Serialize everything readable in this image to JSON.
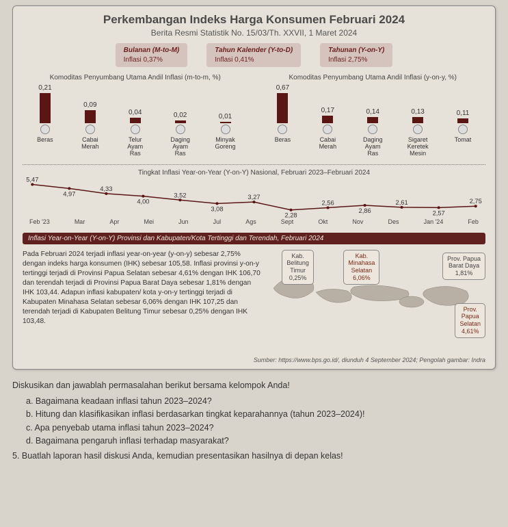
{
  "header": {
    "title": "Perkembangan Indeks Harga Konsumen Februari 2024",
    "subtitle": "Berita Resmi Statistik No. 15/03/Th. XXVII, 1 Maret 2024"
  },
  "pills": [
    {
      "h": "Bulanan (M-to-M)",
      "v": "Inflasi 0,37%"
    },
    {
      "h": "Tahun Kalender (Y-to-D)",
      "v": "Inflasi 0,41%"
    },
    {
      "h": "Tahunan (Y-on-Y)",
      "v": "Inflasi 2,75%"
    }
  ],
  "colors": {
    "bar": "#5a1515",
    "card_bg": "#e6e2da",
    "banner_bg": "#602020",
    "banner_fg": "#f0e8e0"
  },
  "left_bars": {
    "title": "Komoditas Penyumbang Utama Andil Inflasi (m-to-m, %)",
    "items": [
      {
        "label": "Beras",
        "value": 0.21,
        "txt": "0,21"
      },
      {
        "label": "Cabai Merah",
        "value": 0.09,
        "txt": "0,09"
      },
      {
        "label": "Telur Ayam Ras",
        "value": 0.04,
        "txt": "0,04"
      },
      {
        "label": "Daging Ayam Ras",
        "value": 0.02,
        "txt": "0,02"
      },
      {
        "label": "Minyak Goreng",
        "value": 0.01,
        "txt": "0,01"
      }
    ],
    "max": 0.21
  },
  "right_bars": {
    "title": "Komoditas Penyumbang Utama Andil Inflasi (y-on-y, %)",
    "items": [
      {
        "label": "Beras",
        "value": 0.67,
        "txt": "0,67"
      },
      {
        "label": "Cabai Merah",
        "value": 0.17,
        "txt": "0,17"
      },
      {
        "label": "Daging Ayam Ras",
        "value": 0.14,
        "txt": "0,14"
      },
      {
        "label": "Sigaret Keretek Mesin",
        "value": 0.13,
        "txt": "0,13"
      },
      {
        "label": "Tomat",
        "value": 0.11,
        "txt": "0,11"
      }
    ],
    "max": 0.67
  },
  "line": {
    "title": "Tingkat Inflasi Year-on-Year (Y-on-Y) Nasional, Februari 2023–Februari 2024",
    "x": [
      "Feb '23",
      "Mar",
      "Apr",
      "Mei",
      "Jun",
      "Jul",
      "Ags",
      "Sept",
      "Okt",
      "Nov",
      "Des",
      "Jan '24",
      "Feb"
    ],
    "y": [
      5.47,
      4.97,
      4.33,
      4.0,
      3.52,
      3.08,
      3.27,
      2.28,
      2.56,
      2.86,
      2.61,
      2.57,
      2.75
    ],
    "y_txt": [
      "5,47",
      "4,97",
      "4,33",
      "4,00",
      "3,52",
      "3,08",
      "3,27",
      "2,28",
      "2,56",
      "2,86",
      "2,61",
      "2,57",
      "2,75"
    ],
    "ylim": [
      2.0,
      5.6
    ],
    "line_color": "#5a1515"
  },
  "banner": "Inflasi Year-on-Year (Y-on-Y) Provinsi dan Kabupaten/Kota Tertinggi dan Terendah, Februari 2024",
  "paragraph": "Pada Februari 2024 terjadi inflasi year-on-year (y-on-y) sebesar 2,75% dengan indeks harga konsumen (IHK) sebesar 105,58. Inflasi provinsi y-on-y tertinggi terjadi di Provinsi Papua Selatan sebesar 4,61% dengan IHK 106,70 dan terendah terjadi di Provinsi Papua Barat Daya sebesar 1,81% dengan IHK 103,44. Adapun inflasi kabupaten/ kota y-on-y tertinggi terjadi di Kabupaten Minahasa Selatan sebesar 6,06% dengan IHK 107,25 dan terendah terjadi di Kabupaten Belitung Timur sebesar 0,25% dengan IHK 103,48.",
  "bubbles": {
    "beltim": {
      "l1": "Kab.",
      "l2": "Belitung",
      "l3": "Timur",
      "val": "0,25%"
    },
    "minsel": {
      "l1": "Kab.",
      "l2": "Minahasa",
      "l3": "Selatan",
      "val": "6,06%"
    },
    "pbd": {
      "l1": "Prov. Papua",
      "l2": "Barat Daya",
      "val": "1,81%"
    },
    "psel": {
      "l1": "Prov.",
      "l2": "Papua",
      "l3": "Selatan",
      "val": "4,61%"
    }
  },
  "source": "Sumber: https://www.bps.go.id/, diunduh 4 September 2024; Pengolah gambar: Indra",
  "q": {
    "lead": "Diskusikan dan jawablah permasalahan berikut bersama kelompok Anda!",
    "a": "a.  Bagaimana keadaan inflasi tahun 2023–2024?",
    "b": "b.  Hitung dan klasifikasikan inflasi berdasarkan tingkat keparahannya (tahun 2023–2024)!",
    "c": "c.  Apa penyebab utama inflasi tahun 2023–2024?",
    "d": "d.  Bagaimana pengaruh inflasi terhadap masyarakat?",
    "q5": "5.  Buatlah laporan hasil diskusi Anda, kemudian presentasikan hasilnya di depan kelas!"
  }
}
